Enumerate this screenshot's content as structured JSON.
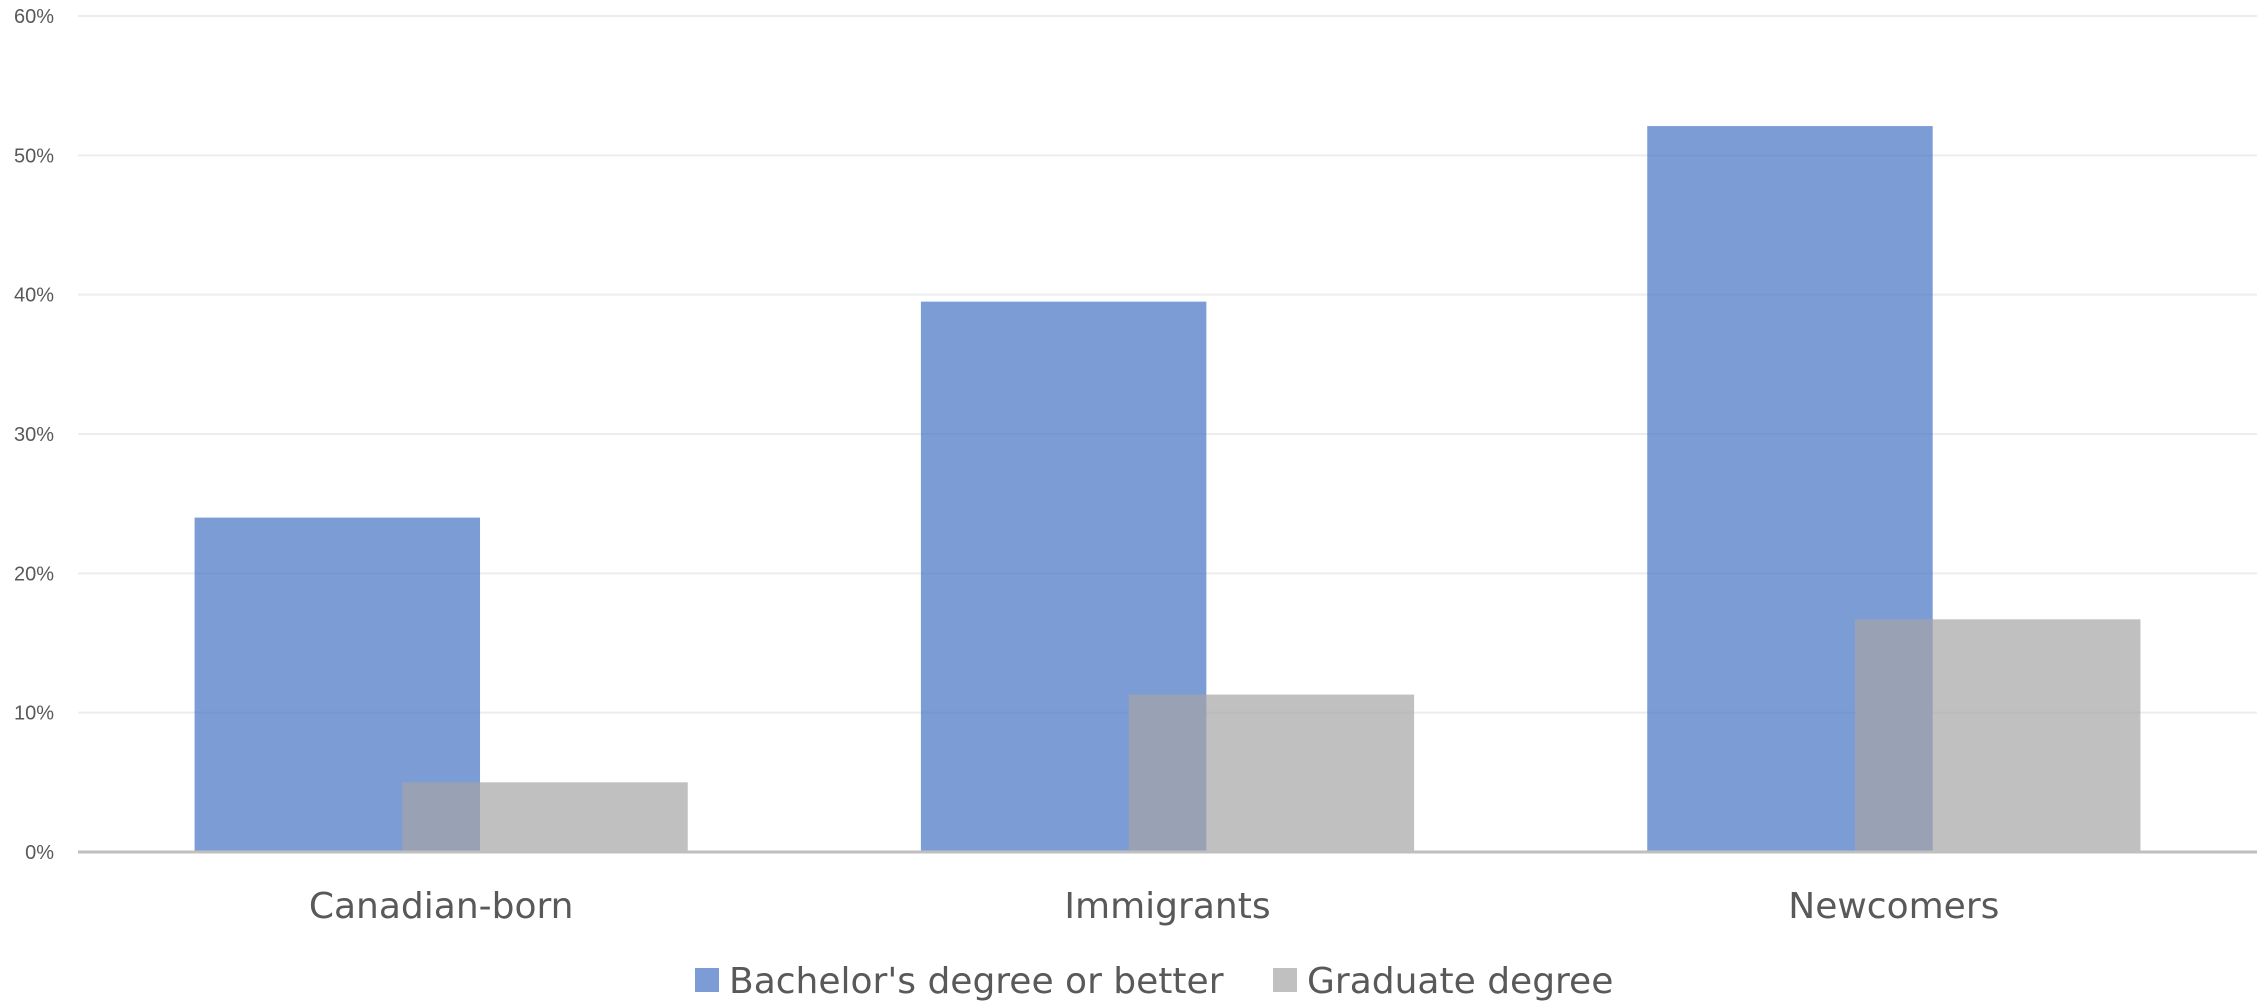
{
  "chart_data": {
    "type": "bar",
    "categories": [
      "Canadian-born",
      "Immigrants",
      "Newcomers"
    ],
    "series": [
      {
        "name": "Bachelor's degree or better",
        "values": [
          24,
          39.5,
          52.1
        ],
        "color": "#4472C4"
      },
      {
        "name": "Graduate degree",
        "values": [
          5,
          11.3,
          16.7
        ],
        "color": "#A5A5A5"
      }
    ],
    "ylim": [
      0,
      60
    ],
    "yticks": [
      0,
      10,
      20,
      30,
      40,
      50,
      60
    ],
    "ytick_labels": [
      "0%",
      "10%",
      "20%",
      "30%",
      "40%",
      "50%",
      "60%"
    ],
    "grid": true,
    "legend_position": "bottom",
    "bar_opacity": 0.7,
    "title": "",
    "xlabel": "",
    "ylabel": ""
  }
}
